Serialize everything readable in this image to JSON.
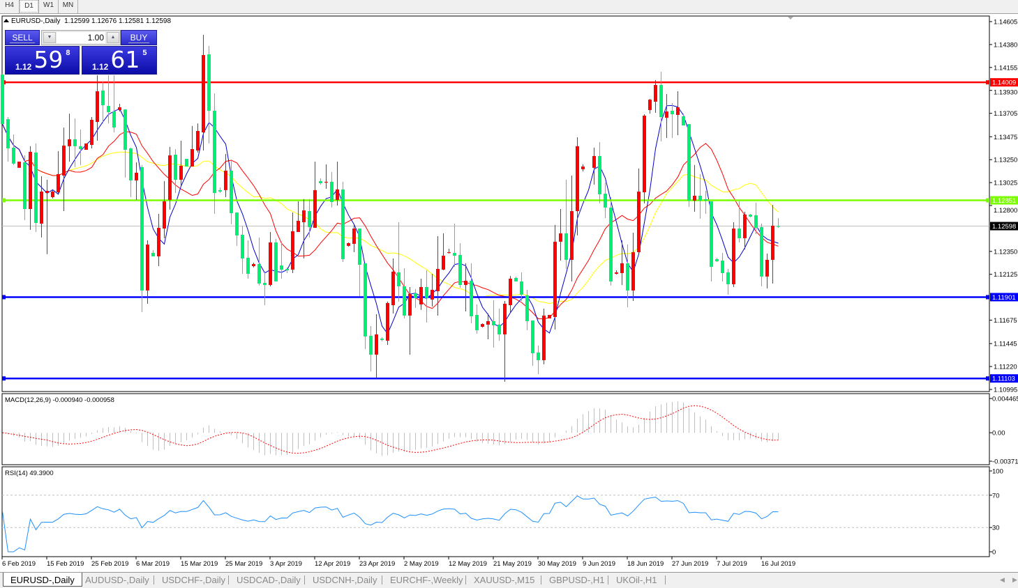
{
  "toolbar": {
    "timeframes": [
      {
        "label": "H4",
        "selected": false
      },
      {
        "label": "D1",
        "selected": true
      },
      {
        "label": "W1",
        "selected": false
      },
      {
        "label": "MN",
        "selected": false
      }
    ]
  },
  "header": {
    "symbol": "EURUSD-,Daily",
    "ohlc": "1.12599 1.12676 1.12581 1.12598"
  },
  "trade_panel": {
    "sell_label": "SELL",
    "buy_label": "BUY",
    "lot": "1.00",
    "sell_price": {
      "prefix": "1.12",
      "big": "59",
      "sup": "8"
    },
    "buy_price": {
      "prefix": "1.12",
      "big": "61",
      "sup": "5"
    },
    "color": "#2c2ccc"
  },
  "tabs": [
    {
      "label": "EURUSD-,Daily",
      "active": true
    },
    {
      "label": "AUDUSD-,Daily"
    },
    {
      "label": "USDCHF-,Daily"
    },
    {
      "label": "USDCAD-,Daily"
    },
    {
      "label": "USDCNH-,Daily"
    },
    {
      "label": "EURCHF-,Weekly"
    },
    {
      "label": "XAUUSD-,M15"
    },
    {
      "label": "GBPUSD-,H1"
    },
    {
      "label": "UKOil-,H1"
    }
  ],
  "chart_data": {
    "type": "candlestick",
    "colors": {
      "bull": "#ff0000",
      "bear": "#00ee76",
      "ma_fast": "#0000cc",
      "ma_mid": "#ff0000",
      "ma_slow": "#ffff00"
    },
    "ylim": [
      1.10995,
      1.14605
    ],
    "y_ticks": [
      "1.14605",
      "1.14380",
      "1.14155",
      "1.13930",
      "1.13705",
      "1.13475",
      "1.13250",
      "1.13025",
      "1.12800",
      "1.12350",
      "1.12125",
      "1.11675",
      "1.11445",
      "1.11220",
      "1.10995"
    ],
    "x_tick_labels": [
      "6 Feb 2019",
      "15 Feb 2019",
      "25 Feb 2019",
      "6 Mar 2019",
      "15 Mar 2019",
      "25 Mar 2019",
      "3 Apr 2019",
      "12 Apr 2019",
      "23 Apr 2019",
      "2 May 2019",
      "12 May 2019",
      "21 May 2019",
      "30 May 2019",
      "9 Jun 2019",
      "18 Jun 2019",
      "27 Jun 2019",
      "7 Jul 2019",
      "16 Jul 2019"
    ],
    "x_tick_every_bars": 8,
    "current_price": {
      "value": 1.12598,
      "label": "1.12598",
      "color": "#c0c0c0"
    },
    "horizontal_lines": [
      {
        "value": 1.14009,
        "label": "1.14009",
        "color": "#ff0000"
      },
      {
        "value": 1.12851,
        "label": "1.12851",
        "color": "#7cfc00"
      },
      {
        "value": 1.11901,
        "label": "1.11901",
        "color": "#0000ff"
      },
      {
        "value": 1.11103,
        "label": "1.11103",
        "color": "#0000ff"
      }
    ],
    "candles_ohlc": [
      [
        1.14085,
        1.14099,
        1.13599,
        1.13599
      ],
      [
        1.13647,
        1.13668,
        1.13231,
        1.13361
      ],
      [
        1.13368,
        1.13497,
        1.13197,
        1.13211
      ],
      [
        1.1317,
        1.13231,
        1.1317,
        1.13231
      ],
      [
        1.13224,
        1.13292,
        1.12657,
        1.12766
      ],
      [
        1.12766,
        1.13382,
        1.12561,
        1.13327
      ],
      [
        1.1332,
        1.13409,
        1.1254,
        1.12629
      ],
      [
        1.12622,
        1.13087,
        1.12486,
        1.12937
      ],
      [
        1.12923,
        1.13053,
        1.12322,
        1.12944
      ],
      [
        1.12882,
        1.12951,
        1.12869,
        1.12937
      ],
      [
        1.1293,
        1.13334,
        1.12916,
        1.13108
      ],
      [
        1.13094,
        1.13565,
        1.12745,
        1.13388
      ],
      [
        1.13382,
        1.13702,
        1.13231,
        1.1345
      ],
      [
        1.1345,
        1.13654,
        1.13177,
        1.13382
      ],
      [
        1.13382,
        1.13545,
        1.13197,
        1.13354
      ],
      [
        1.13347,
        1.13409,
        1.13347,
        1.13409
      ],
      [
        1.13395,
        1.13668,
        1.13361,
        1.13641
      ],
      [
        1.1362,
        1.14078,
        1.13436,
        1.13921
      ],
      [
        1.13928,
        1.14017,
        1.13606,
        1.13784
      ],
      [
        1.13777,
        1.14078,
        1.13606,
        1.13716
      ],
      [
        1.13723,
        1.14078,
        1.13518,
        1.13565
      ],
      [
        1.13737,
        1.13798,
        1.13723,
        1.13764
      ],
      [
        1.13743,
        1.13743,
        1.13074,
        1.13347
      ],
      [
        1.13361,
        1.13368,
        1.12882,
        1.13046
      ],
      [
        1.13046,
        1.13224,
        1.12855,
        1.13122
      ],
      [
        1.13177,
        1.13197,
        1.11754,
        1.11966
      ],
      [
        1.11966,
        1.12458,
        1.11836,
        1.12417
      ],
      [
        1.12335,
        1.12362,
        1.12301,
        1.12301
      ],
      [
        1.12301,
        1.12718,
        1.12205,
        1.12581
      ],
      [
        1.12574,
        1.1304,
        1.12479,
        1.12841
      ],
      [
        1.12855,
        1.13375,
        1.12759,
        1.13292
      ],
      [
        1.13299,
        1.13354,
        1.12923,
        1.13053
      ],
      [
        1.13053,
        1.13436,
        1.12985,
        1.1319
      ],
      [
        1.13258,
        1.13258,
        1.13183,
        1.13183
      ],
      [
        1.13183,
        1.1358,
        1.13183,
        1.13354
      ],
      [
        1.1334,
        1.13606,
        1.1332,
        1.13532
      ],
      [
        1.13518,
        1.14475,
        1.1334,
        1.14277
      ],
      [
        1.14284,
        1.14366,
        1.13409,
        1.1373
      ],
      [
        1.1373,
        1.13901,
        1.12718,
        1.12923
      ],
      [
        1.12951,
        1.12978,
        1.12923,
        1.12937
      ],
      [
        1.12951,
        1.13306,
        1.12882,
        1.13142
      ],
      [
        1.13142,
        1.13251,
        1.12615,
        1.12725
      ],
      [
        1.12732,
        1.12732,
        1.12404,
        1.12506
      ],
      [
        1.12513,
        1.12602,
        1.1213,
        1.1228
      ],
      [
        1.12287,
        1.12458,
        1.12082,
        1.1213
      ],
      [
        1.12205,
        1.12239,
        1.12192,
        1.12226
      ],
      [
        1.12226,
        1.12486,
        1.12014,
        1.12034
      ],
      [
        1.12041,
        1.12151,
        1.11822,
        1.1202
      ],
      [
        1.1202,
        1.1254,
        1.12007,
        1.12438
      ],
      [
        1.12438,
        1.12472,
        1.12055,
        1.12055
      ],
      [
        1.12212,
        1.12445,
        1.12082,
        1.12171
      ],
      [
        1.12178,
        1.12192,
        1.12137,
        1.12164
      ],
      [
        1.12171,
        1.12732,
        1.12137,
        1.12547
      ],
      [
        1.1254,
        1.12841,
        1.1254,
        1.1265
      ],
      [
        1.12636,
        1.12862,
        1.1228,
        1.12752
      ],
      [
        1.12745,
        1.12862,
        1.12486,
        1.12588
      ],
      [
        1.12581,
        1.13231,
        1.12581,
        1.12951
      ],
      [
        1.1304,
        1.13067,
        1.13005,
        1.13019
      ],
      [
        1.13026,
        1.13204,
        1.12964,
        1.13033
      ],
      [
        1.13033,
        1.13129,
        1.1278,
        1.12834
      ],
      [
        1.12855,
        1.13231,
        1.128,
        1.12958
      ],
      [
        1.12958,
        1.13033,
        1.12246,
        1.12274
      ],
      [
        1.12404,
        1.12438,
        1.12397,
        1.12431
      ],
      [
        1.12424,
        1.12609,
        1.12342,
        1.12574
      ],
      [
        1.12574,
        1.12574,
        1.11911,
        1.12219
      ],
      [
        1.12233,
        1.12233,
        1.11391,
        1.11515
      ],
      [
        1.11521,
        1.11617,
        1.11172,
        1.11336
      ],
      [
        1.11336,
        1.11733,
        1.11104,
        1.11535
      ],
      [
        1.11494,
        1.11508,
        1.11467,
        1.1148
      ],
      [
        1.11473,
        1.11857,
        1.11432,
        1.11843
      ],
      [
        1.11822,
        1.1228,
        1.1174,
        1.12151
      ],
      [
        1.12144,
        1.12636,
        1.11857,
        1.12007
      ],
      [
        1.12007,
        1.12185,
        1.11692,
        1.1172
      ],
      [
        1.1172,
        1.12,
        1.11336,
        1.11932
      ],
      [
        1.11939,
        1.1198,
        1.11795,
        1.11891
      ],
      [
        1.11829,
        1.12082,
        1.11775,
        1.12
      ],
      [
        1.12,
        1.12164,
        1.11651,
        1.11891
      ],
      [
        1.11877,
        1.1213,
        1.11809,
        1.11973
      ],
      [
        1.11959,
        1.12499,
        1.1172,
        1.12178
      ],
      [
        1.12171,
        1.12527,
        1.12164,
        1.12308
      ],
      [
        1.12335,
        1.12376,
        1.12329,
        1.12342
      ],
      [
        1.12335,
        1.12622,
        1.12198,
        1.12308
      ],
      [
        1.12315,
        1.12431,
        1.11993,
        1.1202
      ],
      [
        1.1202,
        1.12233,
        1.11761,
        1.12062
      ],
      [
        1.12062,
        1.12233,
        1.11644,
        1.11713
      ],
      [
        1.11726,
        1.11829,
        1.11542,
        1.11576
      ],
      [
        1.1161,
        1.11644,
        1.11603,
        1.11637
      ],
      [
        1.11631,
        1.1174,
        1.11487,
        1.11665
      ],
      [
        1.11665,
        1.1187,
        1.11405,
        1.11624
      ],
      [
        1.11631,
        1.11788,
        1.11473,
        1.11535
      ],
      [
        1.11535,
        1.11863,
        1.1107,
        1.11836
      ],
      [
        1.11822,
        1.12109,
        1.11754,
        1.12082
      ],
      [
        1.12089,
        1.12103,
        1.12055,
        1.12055
      ],
      [
        1.12055,
        1.12144,
        1.11863,
        1.11925
      ],
      [
        1.11918,
        1.11973,
        1.11576,
        1.11665
      ],
      [
        1.11672,
        1.11672,
        1.11227,
        1.1135
      ],
      [
        1.11357,
        1.11426,
        1.11145,
        1.11282
      ],
      [
        1.11282,
        1.11788,
        1.11241,
        1.1172
      ],
      [
        1.11692,
        1.11726,
        1.11692,
        1.11726
      ],
      [
        1.11706,
        1.12609,
        1.11583,
        1.12445
      ],
      [
        1.12445,
        1.12766,
        1.1226,
        1.12527
      ],
      [
        1.12527,
        1.13053,
        1.12178,
        1.12267
      ],
      [
        1.12267,
        1.13094,
        1.12055,
        1.12745
      ],
      [
        1.12745,
        1.1347,
        1.12506,
        1.13382
      ],
      [
        1.13156,
        1.13204,
        1.13135,
        1.13183
      ],
      null,
      [
        1.1317,
        1.13368,
        1.13005,
        1.13286
      ],
      [
        1.13286,
        1.13423,
        1.12821,
        1.1291
      ],
      [
        1.12916,
        1.13026,
        1.12677,
        1.1278
      ],
      [
        1.1278,
        1.12882,
        1.12014,
        1.12055
      ],
      [
        1.1213,
        1.12164,
        1.12123,
        1.12144
      ],
      [
        1.12137,
        1.12458,
        1.1202,
        1.12233
      ],
      [
        1.12233,
        1.12417,
        1.11802,
        1.11966
      ],
      [
        1.11966,
        1.12533,
        1.11863,
        1.12342
      ],
      [
        1.12342,
        1.13163,
        1.12342,
        1.12937
      ],
      [
        1.1293,
        1.13696,
        1.12821,
        1.13682
      ],
      [
        1.13737,
        1.13846,
        1.13702,
        1.13839
      ],
      [
        1.13819,
        1.14031,
        1.13709,
        1.13983
      ],
      [
        1.13983,
        1.14113,
        1.13429,
        1.13668
      ],
      [
        1.13661,
        1.13894,
        1.13463,
        1.13723
      ],
      [
        1.1373,
        1.13805,
        1.13463,
        1.13696
      ],
      [
        1.13689,
        1.13921,
        1.1349,
        1.13764
      ],
      [
        1.13675,
        1.13702,
        1.13586,
        1.13586
      ],
      [
        1.13599,
        1.13599,
        1.12787,
        1.12848
      ],
      [
        1.12848,
        1.13197,
        1.12739,
        1.12896
      ],
      [
        1.12896,
        1.13108,
        1.1267,
        1.12848
      ],
      [
        1.12862,
        1.12944,
        1.12718,
        1.12848
      ],
      [
        1.12841,
        1.12841,
        1.12055,
        1.12198
      ],
      [
        1.12274,
        1.12287,
        1.12246,
        1.12253
      ],
      [
        1.1226,
        1.12335,
        1.12055,
        1.12137
      ],
      [
        1.12144,
        1.12178,
        1.11925,
        1.12027
      ],
      [
        1.12027,
        1.12636,
        1.12,
        1.12574
      ],
      [
        1.12574,
        1.12841,
        1.12438,
        1.12479
      ],
      [
        1.12479,
        1.12739,
        1.12369,
        1.12711
      ],
      [
        1.12711,
        1.12718,
        1.12684,
        1.12691
      ],
      [
        1.12704,
        1.12827,
        1.1252,
        1.12581
      ],
      [
        1.12588,
        1.12622,
        1.12007,
        1.12103
      ],
      [
        1.12103,
        1.12329,
        1.11987,
        1.12267
      ],
      [
        1.12267,
        1.12807,
        1.12034,
        1.12602
      ],
      [
        1.12599,
        1.12676,
        1.12581,
        1.12598
      ]
    ],
    "macd": {
      "label": "MACD(12,26,9) -0.000940 -0.000958",
      "ylim": [
        -0.003715,
        0.004465
      ],
      "y_ticks": [
        "0.004465",
        "0.00",
        "-0.003715"
      ],
      "histogram_color": "#c0c0c0",
      "signal_color": "#ff0000"
    },
    "rsi": {
      "label": "RSI(14) 49.3900",
      "ylim": [
        0,
        100
      ],
      "levels": [
        70,
        30
      ],
      "y_ticks": [
        "100",
        "70",
        "30",
        "0"
      ],
      "color": "#1e90ff"
    }
  }
}
